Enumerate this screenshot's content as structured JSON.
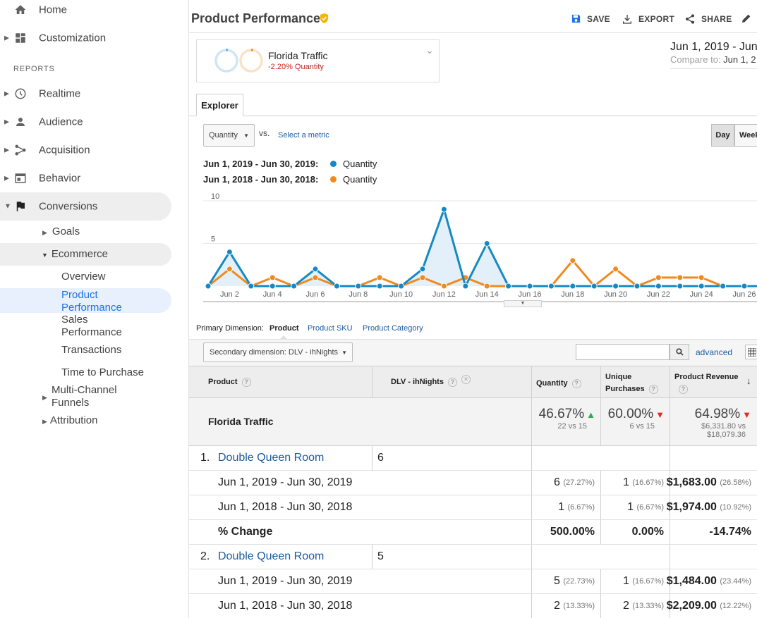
{
  "sidebar": {
    "home": "Home",
    "customization": "Customization",
    "reports_heading": "REPORTS",
    "realtime": "Realtime",
    "audience": "Audience",
    "acquisition": "Acquisition",
    "behavior": "Behavior",
    "conversions": "Conversions",
    "goals": "Goals",
    "ecommerce": "Ecommerce",
    "overview": "Overview",
    "product_performance": [
      "Product",
      "Performance"
    ],
    "sales_performance": [
      "Sales",
      "Performance"
    ],
    "transactions": "Transactions",
    "time_to_purchase": "Time to Purchase",
    "multichannel": [
      "Multi-Channel",
      "Funnels"
    ],
    "attribution": "Attribution"
  },
  "header": {
    "title": "Product Performance",
    "save": "SAVE",
    "export": "EXPORT",
    "share": "SHARE"
  },
  "segment": {
    "name": "Florida Traffic",
    "change": "-2.20% Quantity"
  },
  "daterange": {
    "range": "Jun 1, 2019 - Jun",
    "compare_label": "Compare to:",
    "compare_value": "Jun 1, 2"
  },
  "tabs": {
    "explorer": "Explorer"
  },
  "controls": {
    "metric": "Quantity",
    "vs": "vs.",
    "select_metric": "Select a metric",
    "day": "Day",
    "week": "Week"
  },
  "legend": [
    {
      "period": "Jun 1, 2019 - Jun 30, 2019:",
      "metric": "Quantity",
      "color": "#1589c5"
    },
    {
      "period": "Jun 1, 2018 - Jun 30, 2018:",
      "metric": "Quantity",
      "color": "#f08a1f"
    }
  ],
  "chart_data": {
    "type": "line",
    "x": [
      "Jun 1",
      "Jun 2",
      "Jun 3",
      "Jun 4",
      "Jun 5",
      "Jun 6",
      "Jun 7",
      "Jun 8",
      "Jun 9",
      "Jun 10",
      "Jun 11",
      "Jun 12",
      "Jun 13",
      "Jun 14",
      "Jun 15",
      "Jun 16",
      "Jun 17",
      "Jun 18",
      "Jun 19",
      "Jun 20",
      "Jun 21",
      "Jun 22",
      "Jun 23",
      "Jun 24",
      "Jun 25",
      "Jun 26",
      "Jun 27"
    ],
    "tick_labels": [
      "Jun 2",
      "Jun 4",
      "Jun 6",
      "Jun 8",
      "Jun 10",
      "Jun 12",
      "Jun 14",
      "Jun 16",
      "Jun 18",
      "Jun 20",
      "Jun 22",
      "Jun 24",
      "Jun 26"
    ],
    "y_ticks": [
      "10",
      "5"
    ],
    "ylim": [
      0,
      10
    ],
    "series": [
      {
        "name": "Quantity",
        "period": "Jun 1, 2019 - Jun 30, 2019",
        "color": "#1589c5",
        "values": [
          0,
          4,
          0,
          0,
          0,
          2,
          0,
          0,
          0,
          0,
          2,
          9,
          0,
          5,
          0,
          0,
          0,
          0,
          0,
          0,
          0,
          0,
          0,
          0,
          0,
          0,
          0
        ]
      },
      {
        "name": "Quantity",
        "period": "Jun 1, 2018 - Jun 30, 2018",
        "color": "#f08a1f",
        "values": [
          0,
          2,
          0,
          1,
          0,
          1,
          0,
          0,
          1,
          0,
          1,
          0,
          1,
          0,
          0,
          0,
          0,
          3,
          0,
          2,
          0,
          1,
          1,
          1,
          0,
          0,
          0
        ]
      }
    ]
  },
  "dimensions": {
    "label": "Primary Dimension:",
    "active": "Product",
    "sku": "Product SKU",
    "category": "Product Category"
  },
  "secondary": {
    "label": "Secondary dimension: DLV - ihNights",
    "advanced": "advanced"
  },
  "table": {
    "headers": {
      "product": "Product",
      "dlv": "DLV - ihNights",
      "quantity": "Quantity",
      "unique": [
        "Unique",
        "Purchases"
      ],
      "revenue": "Product Revenue"
    },
    "summary": {
      "name": "Florida Traffic",
      "quantity": {
        "pct": "46.67%",
        "sub": "22 vs 15"
      },
      "unique": {
        "pct": "60.00%",
        "sub": "6 vs 15"
      },
      "revenue": {
        "pct": "64.98%",
        "sub1": "$6,331.80 vs",
        "sub2": "$18,079.36"
      }
    },
    "groups": [
      {
        "index": "1.",
        "product": "Double Queen Room",
        "dlv": "6",
        "rows": [
          {
            "label": "Jun 1, 2019 - Jun 30, 2019",
            "q": "6",
            "qp": "(27.27%)",
            "u": "1",
            "up": "(16.67%)",
            "r": "$1,683.00",
            "rp": "(26.58%)"
          },
          {
            "label": "Jun 1, 2018 - Jun 30, 2018",
            "q": "1",
            "qp": "(6.67%)",
            "u": "1",
            "up": "(6.67%)",
            "r": "$1,974.00",
            "rp": "(10.92%)"
          },
          {
            "label": "% Change",
            "q": "500.00%",
            "qp": "",
            "u": "0.00%",
            "up": "",
            "r": "-14.74%",
            "rp": ""
          }
        ]
      },
      {
        "index": "2.",
        "product": "Double Queen Room",
        "dlv": "5",
        "rows": [
          {
            "label": "Jun 1, 2019 - Jun 30, 2019",
            "q": "5",
            "qp": "(22.73%)",
            "u": "1",
            "up": "(16.67%)",
            "r": "$1,484.00",
            "rp": "(23.44%)"
          },
          {
            "label": "Jun 1, 2018 - Jun 30, 2018",
            "q": "2",
            "qp": "(13.33%)",
            "u": "2",
            "up": "(13.33%)",
            "r": "$2,209.00",
            "rp": "(12.22%)"
          }
        ]
      }
    ]
  }
}
